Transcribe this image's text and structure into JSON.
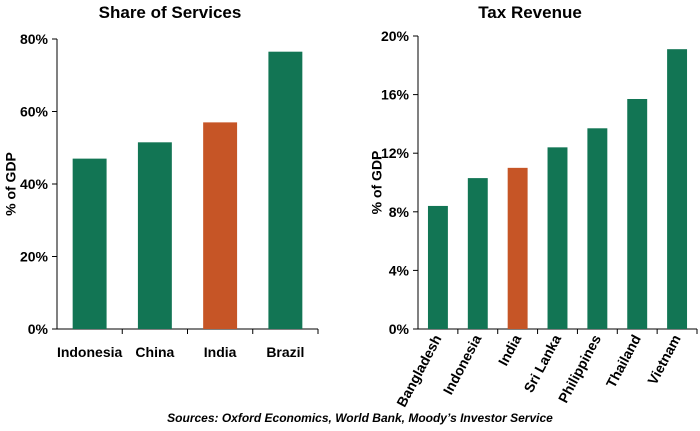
{
  "chart_data": [
    {
      "type": "bar",
      "title": "Share of Services",
      "ylabel": "% of GDP",
      "xlabel": "",
      "categories": [
        "Indonesia",
        "China",
        "India",
        "Brazil"
      ],
      "values": [
        47,
        51.5,
        57,
        76.5
      ],
      "highlight": "India",
      "ylim": [
        0,
        80
      ],
      "yticks": [
        "0%",
        "20%",
        "40%",
        "60%",
        "80%"
      ],
      "grid": false
    },
    {
      "type": "bar",
      "title": "Tax Revenue",
      "ylabel": "% of GDP",
      "xlabel": "",
      "categories": [
        "Bangladesh",
        "Indonesia",
        "India",
        "Sri Lanka",
        "Philippines",
        "Thailand",
        "Vietnam"
      ],
      "values": [
        8.4,
        10.3,
        11,
        12.4,
        13.7,
        15.7,
        19.1
      ],
      "highlight": "India",
      "ylim": [
        0,
        20
      ],
      "yticks": [
        "0%",
        "4%",
        "8%",
        "12%",
        "16%",
        "20%"
      ],
      "grid": false
    }
  ],
  "colors": {
    "bar": "#127554",
    "highlight": "#c65526"
  },
  "source": "Sources: Oxford Economics, World Bank, Moody’s Investor Service"
}
